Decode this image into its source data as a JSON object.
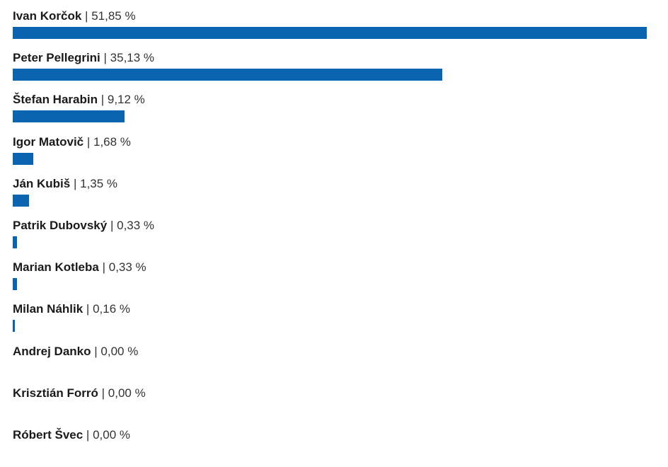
{
  "chart_data": {
    "type": "bar",
    "orientation": "horizontal",
    "bar_color": "#0a64b0",
    "value_suffix": " %",
    "categories": [
      "Ivan Korčok",
      "Peter Pellegrini",
      "Štefan Harabin",
      "Igor Matovič",
      "Ján Kubiš",
      "Patrik Dubovský",
      "Marian Kotleba",
      "Milan Náhlik",
      "Andrej Danko",
      "Krisztián Forró",
      "Róbert Švec"
    ],
    "values": [
      51.85,
      35.13,
      9.12,
      1.68,
      1.35,
      0.33,
      0.33,
      0.16,
      0.0,
      0.0,
      0.0
    ],
    "value_labels": [
      "51,85 %",
      "35,13 %",
      "9,12 %",
      "1,68 %",
      "1,35 %",
      "0,33 %",
      "0,33 %",
      "0,16 %",
      "0,00 %",
      "0,00 %",
      "0,00 %"
    ],
    "separator": "|"
  }
}
